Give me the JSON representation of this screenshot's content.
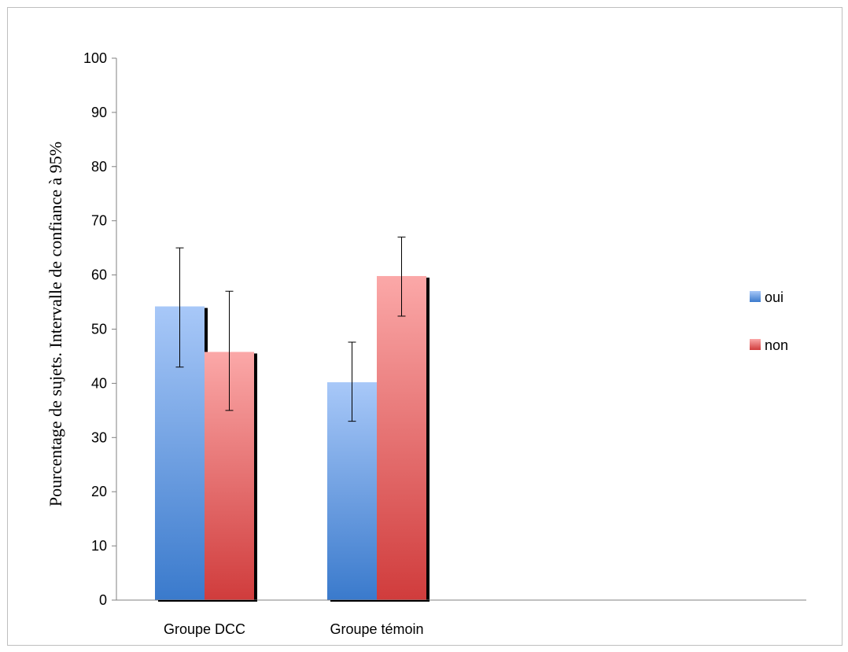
{
  "chart_data": {
    "type": "bar",
    "categories": [
      "Groupe DCC",
      "Groupe témoin"
    ],
    "series": [
      {
        "name": "oui",
        "values": [
          54.2,
          40.2
        ],
        "error_low": [
          43.0,
          33.0
        ],
        "error_high": [
          65.0,
          47.6
        ],
        "color_top": "#a8c8f8",
        "color_bottom": "#3a7acc"
      },
      {
        "name": "non",
        "values": [
          45.8,
          59.8
        ],
        "error_low": [
          35.0,
          52.4
        ],
        "error_high": [
          57.0,
          67.0
        ],
        "color_top": "#fba8a8",
        "color_bottom": "#d03c3c"
      }
    ],
    "ylabel": "Pourcentage de sujets. Intervalle de confiance à 95%",
    "xlabel": "",
    "ylim": [
      0,
      100
    ],
    "yticks": [
      "0",
      "10",
      "20",
      "30",
      "40",
      "50",
      "60",
      "70",
      "80",
      "90",
      "100"
    ],
    "grid": false,
    "legend_position": "right"
  }
}
